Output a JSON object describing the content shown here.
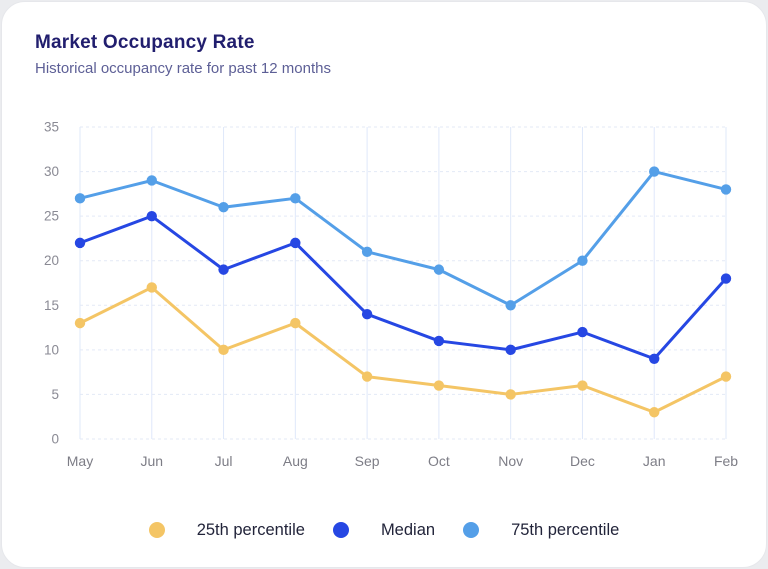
{
  "header": {
    "title": "Market Occupancy Rate",
    "subtitle": "Historical occupancy rate for past 12 months"
  },
  "chart_data": {
    "type": "line",
    "title": "Market Occupancy Rate",
    "subtitle": "Historical occupancy rate for past 12 months",
    "categories": [
      "May",
      "Jun",
      "Jul",
      "Aug",
      "Sep",
      "Oct",
      "Nov",
      "Dec",
      "Jan",
      "Feb"
    ],
    "series": [
      {
        "name": "25th percentile",
        "color": "#F4C565",
        "values": [
          13,
          17,
          10,
          13,
          7,
          6,
          5,
          6,
          3,
          7
        ]
      },
      {
        "name": "Median",
        "color": "#2647E3",
        "values": [
          22,
          25,
          19,
          22,
          14,
          11,
          10,
          12,
          9,
          18
        ]
      },
      {
        "name": "75th percentile",
        "color": "#549FE8",
        "values": [
          27,
          29,
          26,
          27,
          21,
          19,
          15,
          20,
          30,
          28
        ]
      }
    ],
    "xlabel": "",
    "ylabel": "",
    "ylim": [
      0,
      35
    ],
    "ytick_step": 5,
    "ytick_labels": [
      "0",
      "5",
      "10",
      "15",
      "20",
      "25",
      "30",
      "35"
    ],
    "grid": true,
    "legend_position": "bottom",
    "colors": {
      "grid_horizontal": "#E3E9F6",
      "grid_vertical": "#DFE8FA",
      "y_axis_label": "#8A8A94",
      "x_axis_label": "#7D7D86",
      "legend_text": "#22243A",
      "title_text": "#211E6E",
      "subtitle_text": "#5D5F96",
      "card_background": "#FFFFFF"
    }
  }
}
